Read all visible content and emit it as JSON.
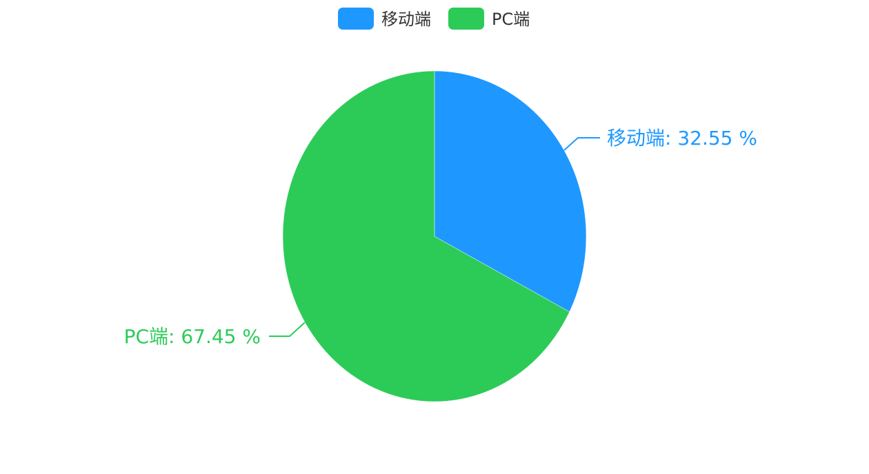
{
  "chart_data": {
    "type": "pie",
    "categories": [
      "移动端",
      "PC端"
    ],
    "values": [
      32.55,
      67.45
    ],
    "colors": [
      "#1E98FF",
      "#2CCB58"
    ],
    "labels": [
      "移动端: 32.55 %",
      "PC端: 67.45 %"
    ],
    "legend": {
      "position": "top",
      "items": [
        "移动端",
        "PC端"
      ]
    }
  }
}
